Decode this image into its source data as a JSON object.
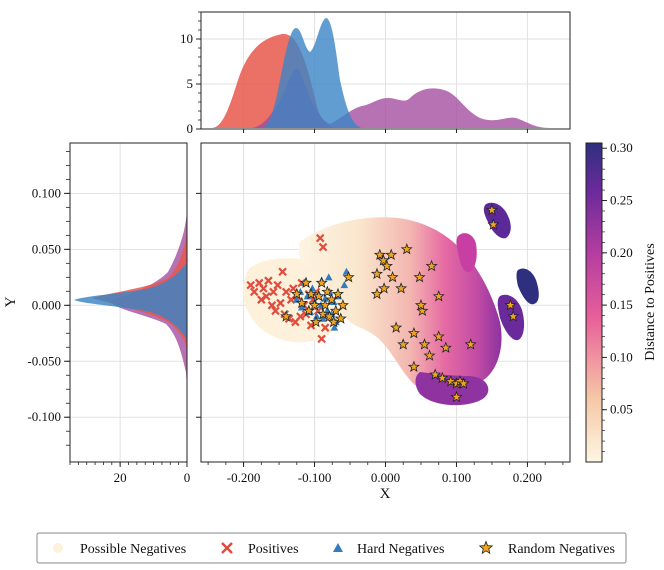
{
  "chart_data": {
    "type": "scatter",
    "xlabel": "X",
    "ylabel": "Y",
    "xlim": [
      -0.26,
      0.26
    ],
    "ylim": [
      -0.14,
      0.145
    ],
    "x_ticks": [
      -0.2,
      -0.1,
      0.0,
      0.1,
      0.2
    ],
    "x_tick_labels": [
      "-0.200",
      "-0.100",
      "0.000",
      "0.100",
      "0.200"
    ],
    "y_ticks": [
      0.1,
      0.05,
      0.0,
      -0.05,
      -0.1
    ],
    "y_tick_labels": [
      "0.100",
      "0.050",
      "0.000",
      "-0.050",
      "-0.100"
    ],
    "grid": true,
    "colorbar": {
      "label": "Distance to Positives",
      "range": [
        0.0,
        0.305
      ],
      "ticks": [
        0.05,
        0.1,
        0.15,
        0.2,
        0.25,
        0.3
      ],
      "tick_labels": [
        "0.05",
        "0.10",
        "0.15",
        "0.20",
        "0.25",
        "0.30"
      ],
      "colors": [
        "#fdf6e3",
        "#f6c7a6",
        "#e8609a",
        "#b63ea0",
        "#6b2a9b",
        "#2e2f7f"
      ]
    },
    "top_marginal": {
      "ylim": [
        0,
        13
      ],
      "y_ticks": [
        0,
        5,
        10
      ],
      "y_tick_labels": [
        "0",
        "5",
        "10"
      ],
      "kde_peaks": {
        "Positives": 11,
        "Hard Negatives": 12.3,
        "Random Negatives": 4.2
      }
    },
    "left_marginal": {
      "xlim_reversed": [
        35,
        0
      ],
      "x_ticks": [
        20,
        0
      ],
      "x_tick_labels": [
        "20",
        "0"
      ]
    },
    "legend": {
      "placement": "bottom-center",
      "items": [
        {
          "label": "Possible Negatives",
          "marker": "circle",
          "color": "#fbf1dd"
        },
        {
          "label": "Positives",
          "marker": "x",
          "color": "#e04b3c"
        },
        {
          "label": "Hard Negatives",
          "marker": "triangle",
          "color": "#2f7cc0"
        },
        {
          "label": "Random Negatives",
          "marker": "star",
          "color": "#f0a51e"
        }
      ]
    },
    "series": [
      {
        "name": "Positives",
        "color": "#e04b3c",
        "points": [
          [
            -0.19,
            0.018
          ],
          [
            -0.185,
            0.012
          ],
          [
            -0.178,
            0.02
          ],
          [
            -0.175,
            0.005
          ],
          [
            -0.172,
            0.015
          ],
          [
            -0.168,
            0.008
          ],
          [
            -0.165,
            0.022
          ],
          [
            -0.16,
            0.0
          ],
          [
            -0.158,
            0.012
          ],
          [
            -0.155,
            -0.005
          ],
          [
            -0.152,
            0.018
          ],
          [
            -0.148,
            0.002
          ],
          [
            -0.145,
            0.03
          ],
          [
            -0.142,
            -0.008
          ],
          [
            -0.14,
            0.012
          ],
          [
            -0.136,
            -0.012
          ],
          [
            -0.133,
            0.005
          ],
          [
            -0.13,
            0.015
          ],
          [
            -0.127,
            -0.015
          ],
          [
            -0.124,
            0.008
          ],
          [
            -0.12,
            -0.01
          ],
          [
            -0.118,
            0.02
          ],
          [
            -0.115,
            0.0
          ],
          [
            -0.112,
            -0.008
          ],
          [
            -0.108,
            0.01
          ],
          [
            -0.105,
            -0.018
          ],
          [
            -0.102,
            0.005
          ],
          [
            -0.098,
            0.012
          ],
          [
            -0.095,
            -0.005
          ],
          [
            -0.092,
            0.06
          ],
          [
            -0.088,
            0.052
          ],
          [
            -0.085,
            -0.02
          ],
          [
            -0.09,
            -0.03
          ]
        ]
      },
      {
        "name": "Hard Negatives",
        "color": "#2f7cc0",
        "points": [
          [
            -0.125,
            0.005
          ],
          [
            -0.12,
            0.012
          ],
          [
            -0.118,
            -0.002
          ],
          [
            -0.114,
            0.02
          ],
          [
            -0.11,
            0.008
          ],
          [
            -0.106,
            -0.006
          ],
          [
            -0.103,
            0.015
          ],
          [
            -0.1,
            0.003
          ],
          [
            -0.097,
            -0.01
          ],
          [
            -0.094,
            0.01
          ],
          [
            -0.091,
            0.0
          ],
          [
            -0.088,
            -0.012
          ],
          [
            -0.085,
            0.006
          ],
          [
            -0.082,
            -0.005
          ],
          [
            -0.079,
            0.012
          ],
          [
            -0.076,
            -0.008
          ],
          [
            -0.073,
            0.003
          ],
          [
            -0.07,
            -0.015
          ],
          [
            -0.067,
            0.008
          ],
          [
            -0.055,
            0.03
          ],
          [
            -0.058,
            0.018
          ],
          [
            -0.08,
            0.025
          ],
          [
            -0.09,
            0.022
          ],
          [
            -0.072,
            -0.02
          ]
        ]
      },
      {
        "name": "Random Negatives",
        "color": "#f0a51e",
        "points": [
          [
            -0.14,
            -0.01
          ],
          [
            -0.125,
            0.01
          ],
          [
            -0.118,
            0.002
          ],
          [
            -0.112,
            0.02
          ],
          [
            -0.108,
            -0.005
          ],
          [
            -0.105,
            0.01
          ],
          [
            -0.1,
            0.0
          ],
          [
            -0.098,
            -0.015
          ],
          [
            -0.094,
            0.008
          ],
          [
            -0.09,
            0.02
          ],
          [
            -0.088,
            -0.008
          ],
          [
            -0.085,
            0.0
          ],
          [
            -0.082,
            0.012
          ],
          [
            -0.079,
            -0.01
          ],
          [
            -0.076,
            0.005
          ],
          [
            -0.073,
            -0.015
          ],
          [
            -0.07,
            -0.005
          ],
          [
            -0.067,
            0.01
          ],
          [
            -0.063,
            -0.012
          ],
          [
            -0.06,
            0.0
          ],
          [
            -0.052,
            0.025
          ],
          [
            -0.012,
            0.028
          ],
          [
            -0.008,
            0.045
          ],
          [
            -0.003,
            0.04
          ],
          [
            0.002,
            0.035
          ],
          [
            0.008,
            0.045
          ],
          [
            -0.002,
            0.015
          ],
          [
            0.01,
            0.025
          ],
          [
            -0.012,
            0.01
          ],
          [
            0.03,
            0.05
          ],
          [
            0.022,
            0.015
          ],
          [
            0.065,
            0.035
          ],
          [
            0.048,
            0.025
          ],
          [
            0.075,
            0.008
          ],
          [
            0.052,
            -0.005
          ],
          [
            0.05,
            0.0
          ],
          [
            0.015,
            -0.02
          ],
          [
            0.04,
            -0.025
          ],
          [
            0.055,
            -0.035
          ],
          [
            0.062,
            -0.045
          ],
          [
            0.075,
            -0.028
          ],
          [
            0.085,
            -0.038
          ],
          [
            0.07,
            -0.062
          ],
          [
            0.08,
            -0.065
          ],
          [
            0.092,
            -0.068
          ],
          [
            0.1,
            -0.07
          ],
          [
            0.105,
            -0.068
          ],
          [
            0.11,
            -0.07
          ],
          [
            0.12,
            -0.035
          ],
          [
            0.04,
            -0.055
          ],
          [
            0.1,
            -0.082
          ],
          [
            0.15,
            0.085
          ],
          [
            0.152,
            0.072
          ],
          [
            0.176,
            0.0
          ],
          [
            0.18,
            -0.01
          ],
          [
            0.025,
            -0.035
          ]
        ]
      }
    ]
  }
}
